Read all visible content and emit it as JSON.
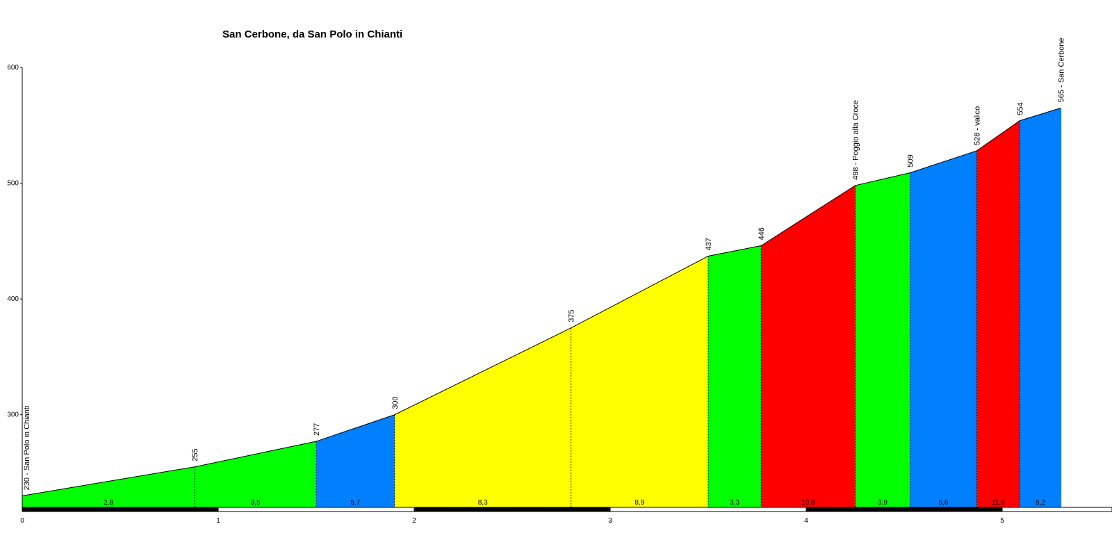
{
  "chart_data": {
    "type": "area",
    "title": "San Cerbone, da San Polo in Chianti",
    "xlabel": "",
    "ylabel": "",
    "xlim": [
      0,
      5.67
    ],
    "ylim": [
      220,
      600
    ],
    "y_ticks": [
      "600",
      "500",
      "400",
      "300"
    ],
    "x_ticks": [
      "0",
      "1",
      "2",
      "3",
      "4",
      "5"
    ],
    "points": [
      {
        "x": 0.0,
        "y": 230,
        "label": "230 - San Polo in Chianti"
      },
      {
        "x": 0.88,
        "y": 255,
        "label": "255"
      },
      {
        "x": 1.5,
        "y": 277,
        "label": "277"
      },
      {
        "x": 1.9,
        "y": 300,
        "label": "300"
      },
      {
        "x": 2.8,
        "y": 375,
        "label": "375"
      },
      {
        "x": 3.5,
        "y": 437,
        "label": "437"
      },
      {
        "x": 3.77,
        "y": 446,
        "label": "446"
      },
      {
        "x": 4.25,
        "y": 498,
        "label": "498 - Poggio alla Croce"
      },
      {
        "x": 4.53,
        "y": 509,
        "label": "509"
      },
      {
        "x": 4.87,
        "y": 528,
        "label": "528 - valico"
      },
      {
        "x": 5.09,
        "y": 554,
        "label": "554"
      },
      {
        "x": 5.3,
        "y": 565,
        "label": "565 - San Cerbone"
      }
    ],
    "segments": [
      {
        "gradient": "2,8",
        "color": "#00ff00",
        "divider": true
      },
      {
        "gradient": "3,5",
        "color": "#00ff00",
        "divider": false
      },
      {
        "gradient": "5,7",
        "color": "#0080ff",
        "divider": false
      },
      {
        "gradient": "8,3",
        "color": "#ffff00",
        "divider": true
      },
      {
        "gradient": "8,9",
        "color": "#ffff00",
        "divider": false
      },
      {
        "gradient": "3,3",
        "color": "#00ff00",
        "divider": false
      },
      {
        "gradient": "10,8",
        "color": "#ff0000",
        "divider": false
      },
      {
        "gradient": "3,9",
        "color": "#00ff00",
        "divider": false
      },
      {
        "gradient": "5,6",
        "color": "#0080ff",
        "divider": false
      },
      {
        "gradient": "11,8",
        "color": "#ff0000",
        "divider": false
      },
      {
        "gradient": "5,2",
        "color": "#0080ff",
        "divider": false
      }
    ],
    "grid": false,
    "legend": "none"
  }
}
